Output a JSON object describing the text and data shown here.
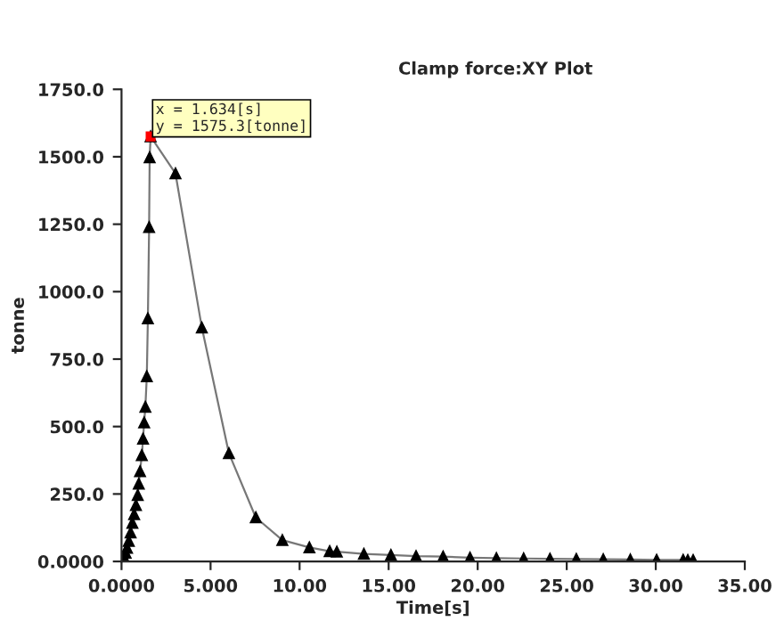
{
  "chart_data": {
    "type": "line",
    "title": "Clamp force:XY Plot",
    "xlabel": "Time[s]",
    "ylabel": "tonne",
    "x": [
      0.03,
      0.13,
      0.23,
      0.31,
      0.41,
      0.51,
      0.61,
      0.71,
      0.81,
      0.91,
      0.97,
      1.04,
      1.14,
      1.21,
      1.27,
      1.34,
      1.42,
      1.48,
      1.55,
      1.58,
      1.634,
      3.03,
      4.51,
      6.03,
      7.54,
      9.03,
      10.55,
      11.69,
      12.09,
      13.61,
      15.13,
      16.54,
      18.06,
      19.57,
      21.05,
      22.58,
      24.06,
      25.54,
      27.05,
      28.57,
      30.05,
      31.54,
      31.8,
      32.1
    ],
    "series": [
      {
        "color": "#000000",
        "values": [
          4,
          16,
          32,
          50,
          76,
          107,
          143,
          175,
          209,
          246,
          288,
          334,
          394,
          455,
          515,
          573,
          686,
          901,
          1239,
          1498,
          1575.3,
          1438,
          867,
          401,
          163,
          79,
          52,
          38,
          36,
          28,
          24,
          20,
          18,
          14,
          12,
          11,
          10,
          9,
          8,
          7,
          6,
          6,
          5,
          5
        ]
      }
    ],
    "xlim": [
      0,
      35
    ],
    "ylim": [
      0,
      1750
    ],
    "xticks": [
      {
        "value": 0,
        "label": "0.0000"
      },
      {
        "value": 5,
        "label": "5.000"
      },
      {
        "value": 10,
        "label": "10.00"
      },
      {
        "value": 15,
        "label": "15.00"
      },
      {
        "value": 20,
        "label": "20.00"
      },
      {
        "value": 25,
        "label": "25.00"
      },
      {
        "value": 30,
        "label": "30.00"
      },
      {
        "value": 35,
        "label": "35.00"
      }
    ],
    "yticks": [
      {
        "value": 0,
        "label": "0.0000"
      },
      {
        "value": 250,
        "label": "250.0"
      },
      {
        "value": 500,
        "label": "500.0"
      },
      {
        "value": 750,
        "label": "750.0"
      },
      {
        "value": 1000,
        "label": "1000.0"
      },
      {
        "value": 1250,
        "label": "1250.0"
      },
      {
        "value": 1500,
        "label": "1500.0"
      },
      {
        "value": 1750,
        "label": "1750.0"
      }
    ],
    "annotations": [
      {
        "text": "x = 1.634[s]\ny = 1575.3[tonne]",
        "x": 1.634,
        "y": 1575.3
      }
    ],
    "marker": "triangle",
    "grid": false,
    "legend": false
  }
}
